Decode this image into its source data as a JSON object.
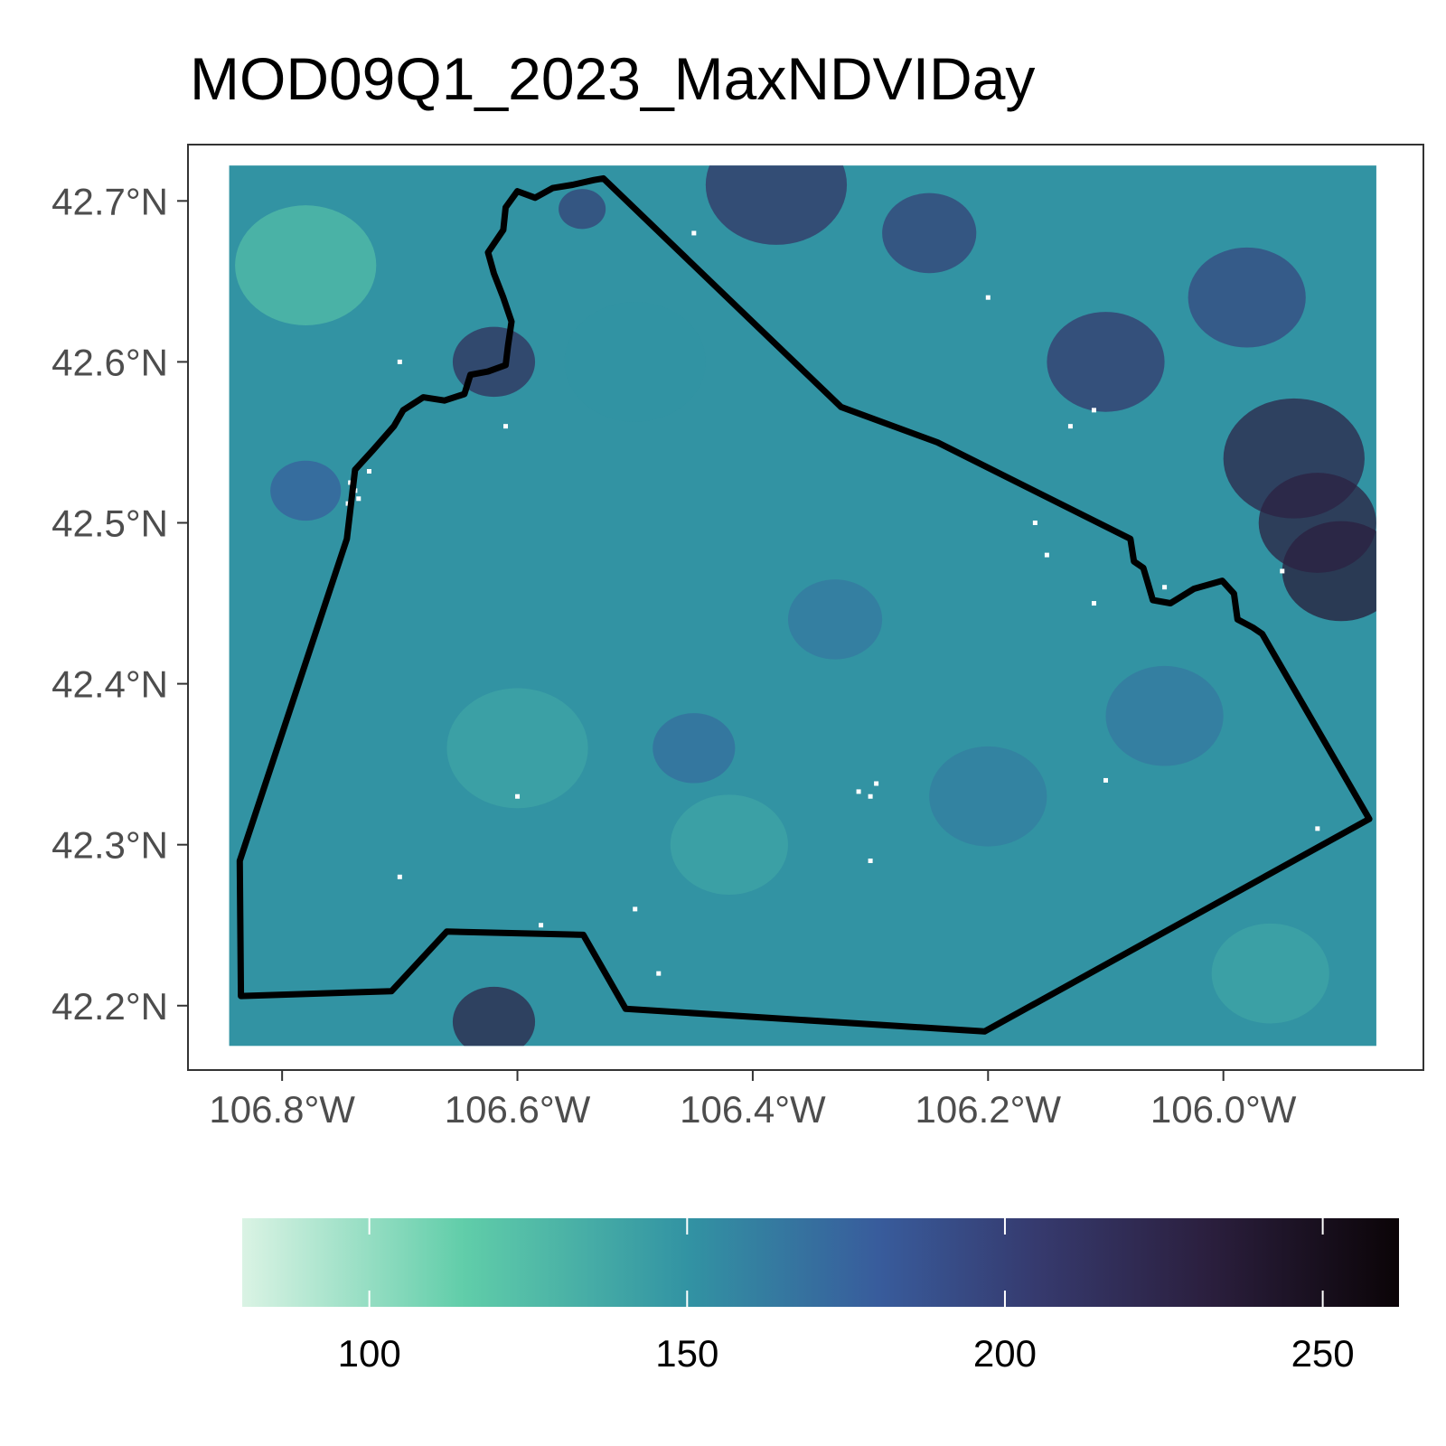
{
  "title": "MOD09Q1_2023_MaxNDVIDay",
  "map": {
    "x_axis": {
      "ticks": [
        {
          "value": -106.8,
          "label": "106.8°W"
        },
        {
          "value": -106.6,
          "label": "106.6°W"
        },
        {
          "value": -106.4,
          "label": "106.4°W"
        },
        {
          "value": -106.2,
          "label": "106.2°W"
        },
        {
          "value": -106.0,
          "label": "106.0°W"
        }
      ]
    },
    "y_axis": {
      "ticks": [
        {
          "value": 42.7,
          "label": "42.7°N"
        },
        {
          "value": 42.6,
          "label": "42.6°N"
        },
        {
          "value": 42.5,
          "label": "42.5°N"
        },
        {
          "value": 42.4,
          "label": "42.4°N"
        },
        {
          "value": 42.3,
          "label": "42.3°N"
        },
        {
          "value": 42.2,
          "label": "42.2°N"
        }
      ]
    },
    "extent": {
      "lon": [
        -106.88,
        -105.83
      ],
      "lat": [
        42.16,
        42.735
      ]
    },
    "raster_extent": {
      "lon": [
        -106.845,
        -105.87
      ],
      "lat": [
        42.175,
        42.722
      ]
    },
    "boundary_color": "#000000",
    "boundary": [
      [
        -106.835,
        42.206
      ],
      [
        -106.836,
        42.29
      ],
      [
        -106.745,
        42.49
      ],
      [
        -106.738,
        42.533
      ],
      [
        -106.723,
        42.545
      ],
      [
        -106.705,
        42.56
      ],
      [
        -106.697,
        42.57
      ],
      [
        -106.68,
        42.578
      ],
      [
        -106.662,
        42.576
      ],
      [
        -106.645,
        42.58
      ],
      [
        -106.64,
        42.592
      ],
      [
        -106.625,
        42.594
      ],
      [
        -106.61,
        42.598
      ],
      [
        -106.608,
        42.61
      ],
      [
        -106.605,
        42.625
      ],
      [
        -106.612,
        42.64
      ],
      [
        -106.62,
        42.655
      ],
      [
        -106.625,
        42.668
      ],
      [
        -106.612,
        42.682
      ],
      [
        -106.61,
        42.696
      ],
      [
        -106.6,
        42.706
      ],
      [
        -106.585,
        42.702
      ],
      [
        -106.57,
        42.708
      ],
      [
        -106.553,
        42.71
      ],
      [
        -106.535,
        42.713
      ],
      [
        -106.527,
        42.714
      ],
      [
        -106.325,
        42.572
      ],
      [
        -106.243,
        42.55
      ],
      [
        -106.079,
        42.49
      ],
      [
        -106.076,
        42.476
      ],
      [
        -106.068,
        42.472
      ],
      [
        -106.064,
        42.462
      ],
      [
        -106.06,
        42.452
      ],
      [
        -106.045,
        42.45
      ],
      [
        -106.025,
        42.459
      ],
      [
        -106.001,
        42.464
      ],
      [
        -105.991,
        42.456
      ],
      [
        -105.988,
        42.44
      ],
      [
        -105.975,
        42.435
      ],
      [
        -105.967,
        42.431
      ],
      [
        -105.876,
        42.316
      ],
      [
        -106.203,
        42.184
      ],
      [
        -106.508,
        42.198
      ],
      [
        -106.544,
        42.244
      ],
      [
        -106.66,
        42.246
      ],
      [
        -106.707,
        42.209
      ]
    ],
    "colorbar": {
      "min": 80,
      "max": 262,
      "ticks": [
        100,
        150,
        200,
        250
      ],
      "tick_labels": [
        "100",
        "150",
        "200",
        "250"
      ],
      "colors": [
        "#daf3e4",
        "#60cda9",
        "#3293a3",
        "#385c9c",
        "#363a6e",
        "#2b1f3e",
        "#0b0407"
      ],
      "stops": [
        80,
        115,
        150,
        180,
        205,
        232,
        262
      ]
    },
    "raster_background_value": 150,
    "raster_patches": [
      {
        "lon": -106.62,
        "lat": 42.6,
        "value": 215,
        "r": 0.035
      },
      {
        "lon": -106.545,
        "lat": 42.695,
        "value": 200,
        "r": 0.02
      },
      {
        "lon": -106.25,
        "lat": 42.68,
        "value": 200,
        "r": 0.04
      },
      {
        "lon": -106.38,
        "lat": 42.71,
        "value": 210,
        "r": 0.06
      },
      {
        "lon": -106.1,
        "lat": 42.6,
        "value": 205,
        "r": 0.05
      },
      {
        "lon": -105.94,
        "lat": 42.54,
        "value": 225,
        "r": 0.06
      },
      {
        "lon": -105.9,
        "lat": 42.47,
        "value": 235,
        "r": 0.05
      },
      {
        "lon": -105.92,
        "lat": 42.5,
        "value": 230,
        "r": 0.05
      },
      {
        "lon": -105.98,
        "lat": 42.64,
        "value": 195,
        "r": 0.05
      },
      {
        "lon": -106.62,
        "lat": 42.19,
        "value": 225,
        "r": 0.035
      },
      {
        "lon": -106.78,
        "lat": 42.66,
        "value": 125,
        "r": 0.06
      },
      {
        "lon": -106.6,
        "lat": 42.36,
        "value": 140,
        "r": 0.06
      },
      {
        "lon": -106.45,
        "lat": 42.36,
        "value": 170,
        "r": 0.035
      },
      {
        "lon": -106.33,
        "lat": 42.44,
        "value": 165,
        "r": 0.04
      },
      {
        "lon": -106.42,
        "lat": 42.3,
        "value": 140,
        "r": 0.05
      },
      {
        "lon": -106.2,
        "lat": 42.33,
        "value": 162,
        "r": 0.05
      },
      {
        "lon": -106.05,
        "lat": 42.38,
        "value": 165,
        "r": 0.05
      },
      {
        "lon": -106.78,
        "lat": 42.52,
        "value": 178,
        "r": 0.03
      },
      {
        "lon": -105.96,
        "lat": 42.22,
        "value": 140,
        "r": 0.05
      },
      {
        "lon": -106.5,
        "lat": 42.6,
        "value": 150,
        "r": 0.06
      }
    ],
    "raster_nodata_spots": [
      [
        -106.738,
        42.52
      ],
      [
        -106.742,
        42.525
      ],
      [
        -106.735,
        42.515
      ],
      [
        -106.744,
        42.512
      ],
      [
        -106.726,
        42.532
      ],
      [
        -106.3,
        42.33
      ],
      [
        -106.31,
        42.333
      ],
      [
        -106.295,
        42.338
      ],
      [
        -106.02,
        42.46
      ],
      [
        -106.11,
        42.45
      ],
      [
        -106.15,
        42.48
      ],
      [
        -105.95,
        42.47
      ],
      [
        -106.5,
        42.26
      ],
      [
        -106.58,
        42.25
      ],
      [
        -106.2,
        42.64
      ],
      [
        -106.45,
        42.68
      ],
      [
        -106.13,
        42.56
      ],
      [
        -106.11,
        42.57
      ],
      [
        -106.61,
        42.56
      ],
      [
        -106.7,
        42.28
      ],
      [
        -106.48,
        42.22
      ],
      [
        -106.3,
        42.29
      ],
      [
        -106.6,
        42.33
      ],
      [
        -106.7,
        42.6
      ],
      [
        -106.1,
        42.34
      ],
      [
        -105.92,
        42.31
      ],
      [
        -106.05,
        42.46
      ],
      [
        -106.16,
        42.5
      ]
    ]
  }
}
